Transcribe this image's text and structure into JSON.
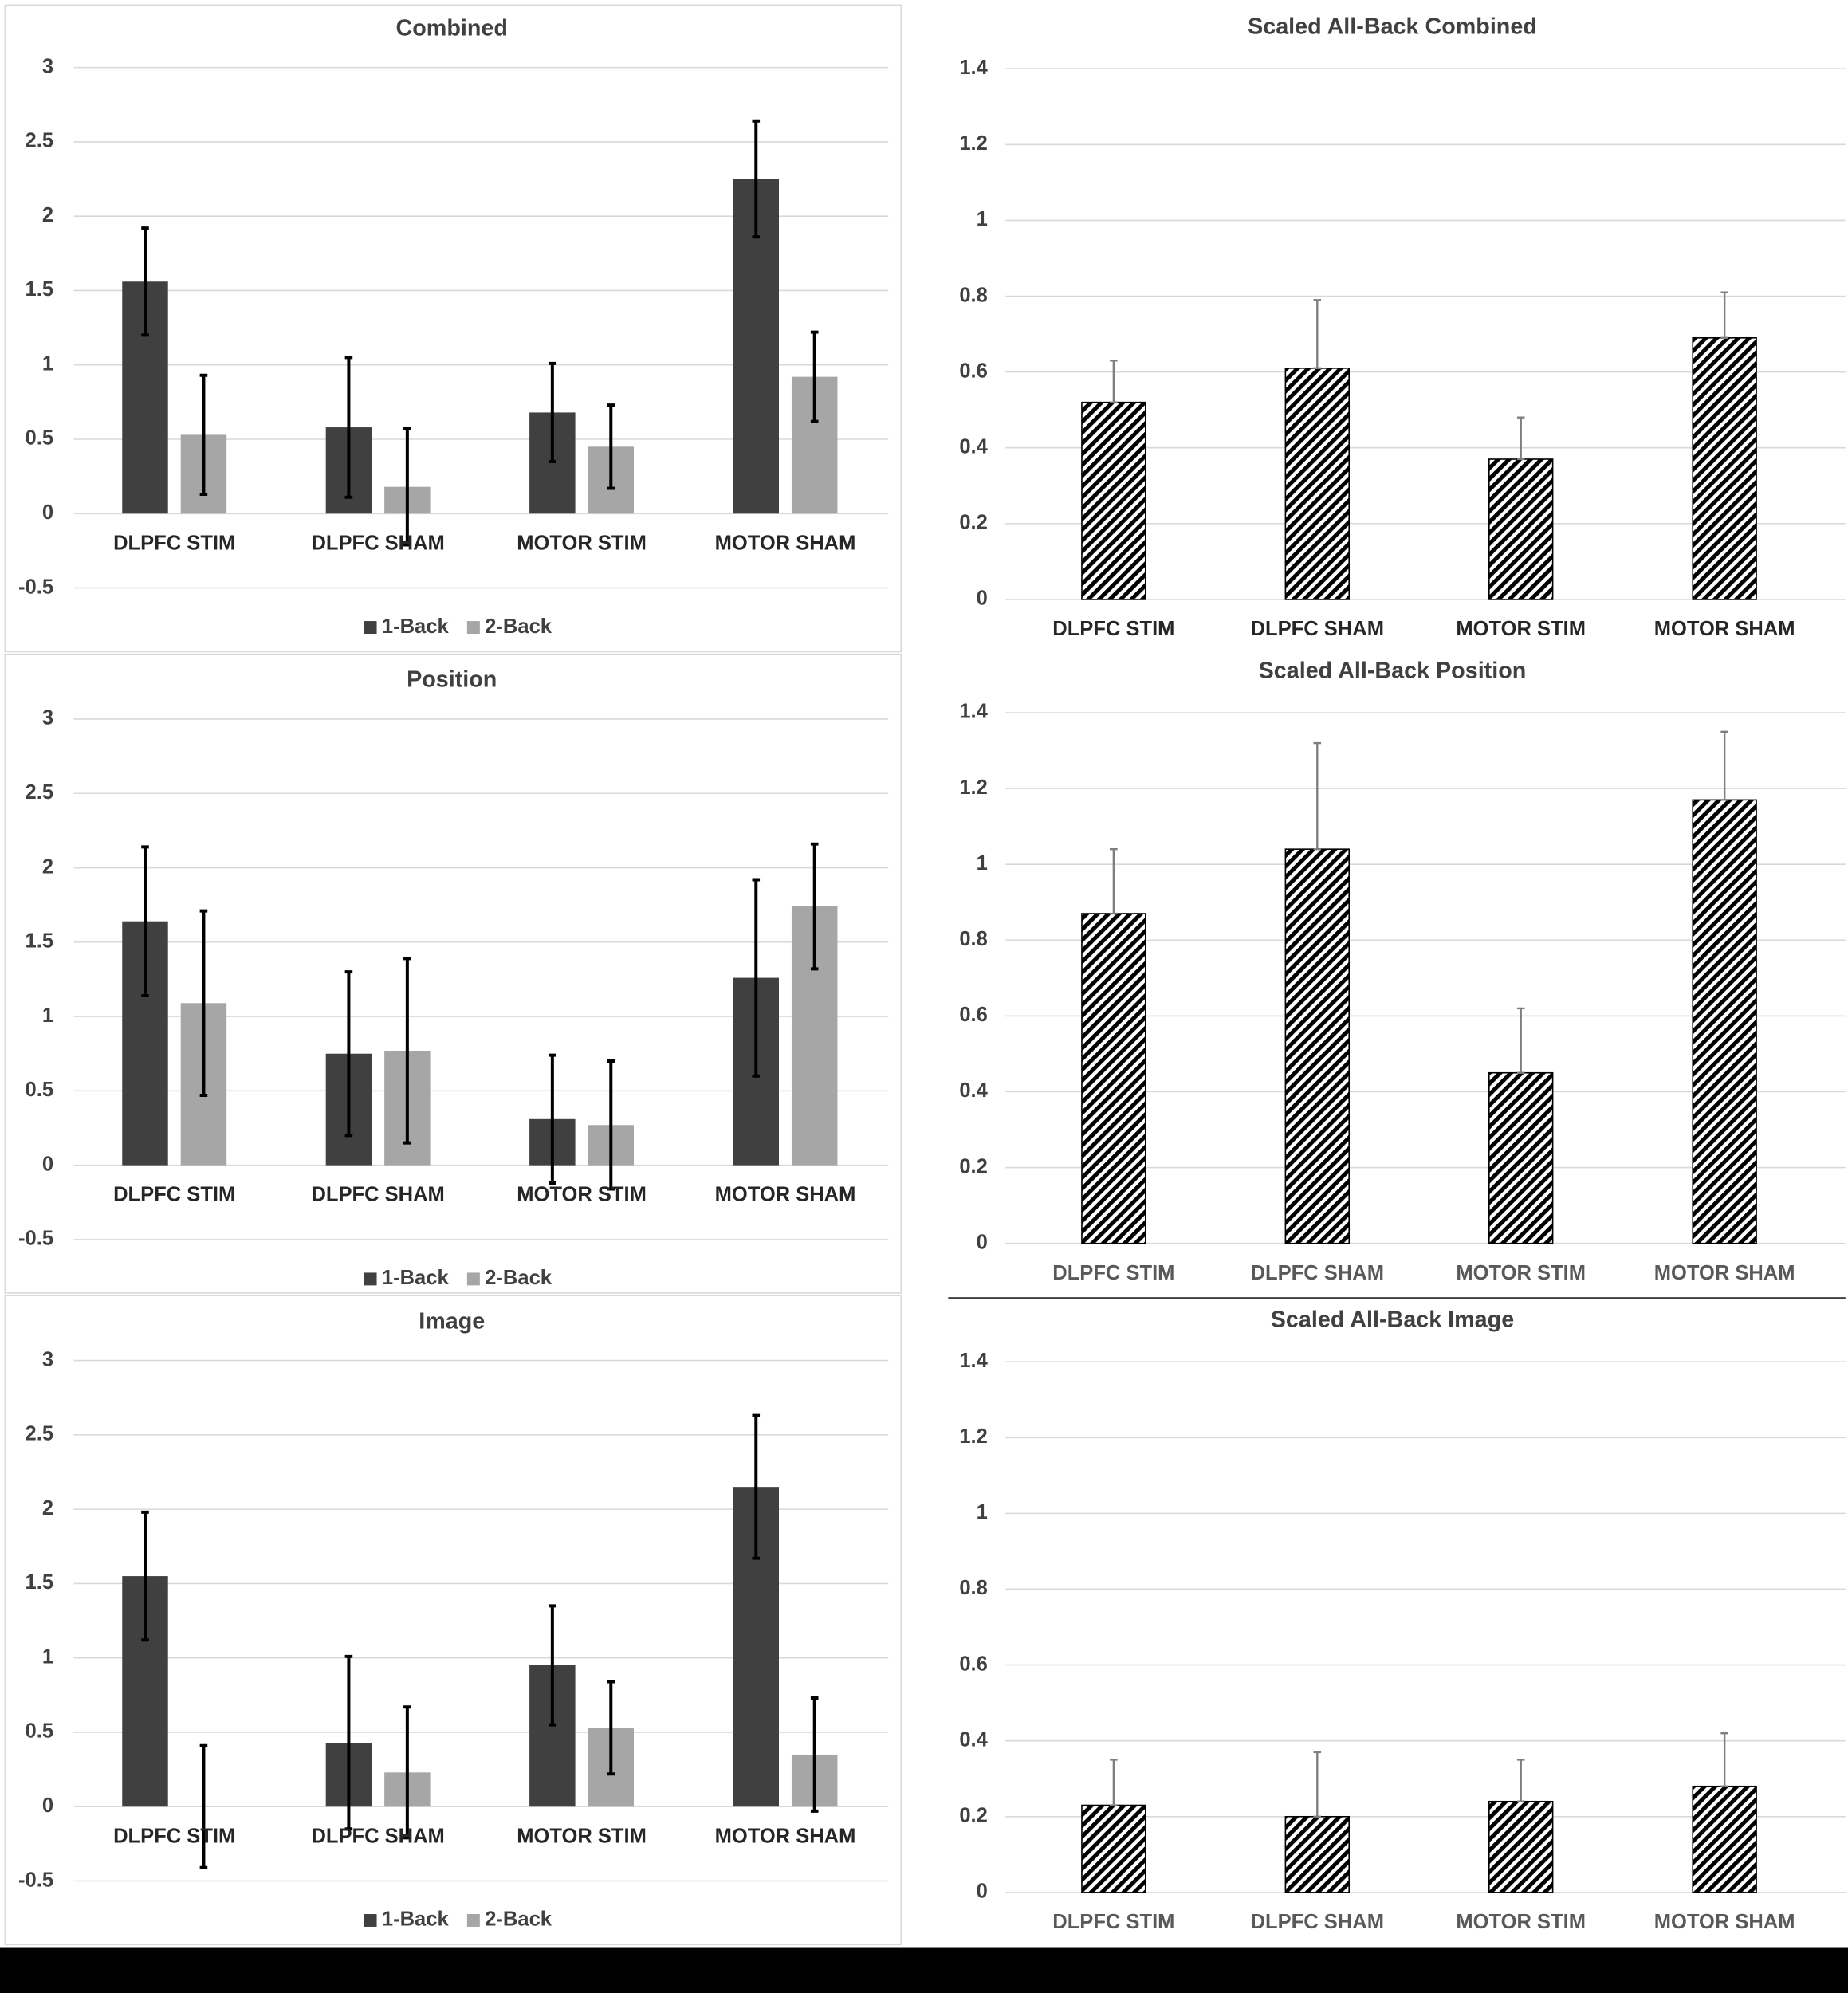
{
  "chart_data": [
    {
      "type": "bar",
      "title": "Combined",
      "categories": [
        "DLPFC STIM",
        "DLPFC SHAM",
        "MOTOR STIM",
        "MOTOR SHAM"
      ],
      "series": [
        {
          "name": "1-Back",
          "color": "#404040",
          "values": [
            1.56,
            0.58,
            0.68,
            2.25
          ],
          "errors": [
            0.36,
            0.47,
            0.33,
            0.39
          ]
        },
        {
          "name": "2-Back",
          "color": "#a6a6a6",
          "values": [
            0.53,
            0.18,
            0.45,
            0.92
          ],
          "errors": [
            0.4,
            0.39,
            0.28,
            0.3
          ]
        }
      ],
      "ylim": [
        -0.5,
        3
      ],
      "yticks": [
        -0.5,
        0,
        0.5,
        1,
        1.5,
        2,
        2.5,
        3
      ],
      "grid": true,
      "legend": "bottom"
    },
    {
      "type": "bar",
      "title": "Scaled All-Back Combined",
      "categories": [
        "DLPFC STIM",
        "DLPFC SHAM",
        "MOTOR STIM",
        "MOTOR SHAM"
      ],
      "values": [
        0.52,
        0.61,
        0.37,
        0.69
      ],
      "errors": [
        0.11,
        0.18,
        0.11,
        0.12
      ],
      "color": "#000000",
      "pattern": "hatch",
      "ylim": [
        0,
        1.4
      ],
      "yticks": [
        0,
        0.2,
        0.4,
        0.6,
        0.8,
        1,
        1.2,
        1.4
      ],
      "grid": true
    },
    {
      "type": "bar",
      "title": "Position",
      "categories": [
        "DLPFC STIM",
        "DLPFC SHAM",
        "MOTOR STIM",
        "MOTOR SHAM"
      ],
      "series": [
        {
          "name": "1-Back",
          "color": "#404040",
          "values": [
            1.64,
            0.75,
            0.31,
            1.26
          ],
          "errors": [
            0.5,
            0.55,
            0.43,
            0.66
          ]
        },
        {
          "name": "2-Back",
          "color": "#a6a6a6",
          "values": [
            1.09,
            0.77,
            0.27,
            1.74
          ],
          "errors": [
            0.62,
            0.62,
            0.43,
            0.42
          ]
        }
      ],
      "ylim": [
        -0.5,
        3
      ],
      "yticks": [
        -0.5,
        0,
        0.5,
        1,
        1.5,
        2,
        2.5,
        3
      ],
      "grid": true,
      "legend": "bottom"
    },
    {
      "type": "bar",
      "title": "Scaled All-Back Position",
      "categories": [
        "DLPFC STIM",
        "DLPFC SHAM",
        "MOTOR STIM",
        "MOTOR SHAM"
      ],
      "values": [
        0.87,
        1.04,
        0.45,
        1.17
      ],
      "errors": [
        0.17,
        0.28,
        0.17,
        0.18
      ],
      "color": "#000000",
      "pattern": "hatch",
      "ylim": [
        0,
        1.4
      ],
      "yticks": [
        0,
        0.2,
        0.4,
        0.6,
        0.8,
        1,
        1.2,
        1.4
      ],
      "grid": true
    },
    {
      "type": "bar",
      "title": "Image",
      "categories": [
        "DLPFC STIM",
        "DLPFC SHAM",
        "MOTOR STIM",
        "MOTOR SHAM"
      ],
      "series": [
        {
          "name": "1-Back",
          "color": "#404040",
          "values": [
            1.55,
            0.43,
            0.95,
            2.15
          ],
          "errors": [
            0.43,
            0.58,
            0.4,
            0.48
          ]
        },
        {
          "name": "2-Back",
          "color": "#a6a6a6",
          "values": [
            0,
            0.23,
            0.53,
            0.35
          ],
          "errors": [
            0.41,
            0.44,
            0.31,
            0.38
          ]
        }
      ],
      "ylim": [
        -0.5,
        3
      ],
      "yticks": [
        -0.5,
        0,
        0.5,
        1,
        1.5,
        2,
        2.5,
        3
      ],
      "grid": true,
      "legend": "bottom"
    },
    {
      "type": "bar",
      "title": "Scaled All-Back Image",
      "categories": [
        "DLPFC STIM",
        "DLPFC SHAM",
        "MOTOR STIM",
        "MOTOR SHAM"
      ],
      "values": [
        0.23,
        0.2,
        0.24,
        0.28
      ],
      "errors": [
        0.12,
        0.17,
        0.11,
        0.14
      ],
      "color": "#000000",
      "pattern": "hatch",
      "ylim": [
        0,
        1.4
      ],
      "yticks": [
        0,
        0.2,
        0.4,
        0.6,
        0.8,
        1,
        1.2,
        1.4
      ],
      "grid": true
    }
  ]
}
